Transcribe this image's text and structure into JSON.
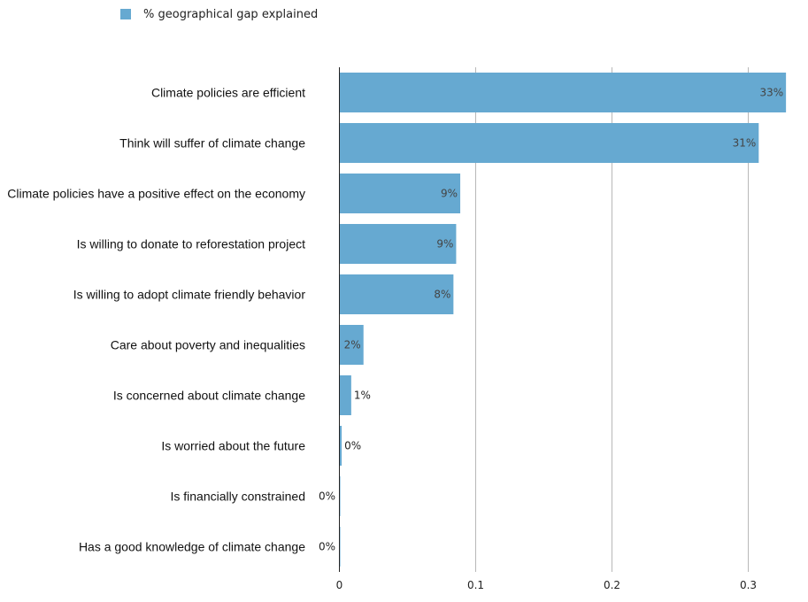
{
  "chart_data": {
    "type": "bar",
    "orientation": "horizontal",
    "categories": [
      "Climate policies are efficient",
      "Think will suffer of climate change",
      "Climate policies have a positive effect on the economy",
      "Is willing to donate to reforestation project",
      "Is willing to adopt climate friendly behavior",
      "Care about poverty and inequalities",
      "Is concerned about climate change",
      "Is worried about the future",
      "Is financially constrained",
      "Has a good knowledge of climate change"
    ],
    "series": [
      {
        "name": "% geographical gap explained",
        "color": "#66a9d1",
        "values": [
          0.328,
          0.308,
          0.089,
          0.086,
          0.084,
          0.018,
          0.009,
          0.002,
          0.0003,
          0.0003
        ],
        "data_labels": [
          "33%",
          "31%",
          "9%",
          "9%",
          "8%",
          "2%",
          "1%",
          "0%",
          "0%",
          "0%"
        ]
      }
    ],
    "x_ticks": [
      "0",
      "0.1",
      "0.2",
      "0.3"
    ],
    "xlim": [
      0,
      0.33
    ],
    "grid": "vertical",
    "legend_position": "top-left",
    "title": "",
    "xlabel": "",
    "ylabel": ""
  }
}
